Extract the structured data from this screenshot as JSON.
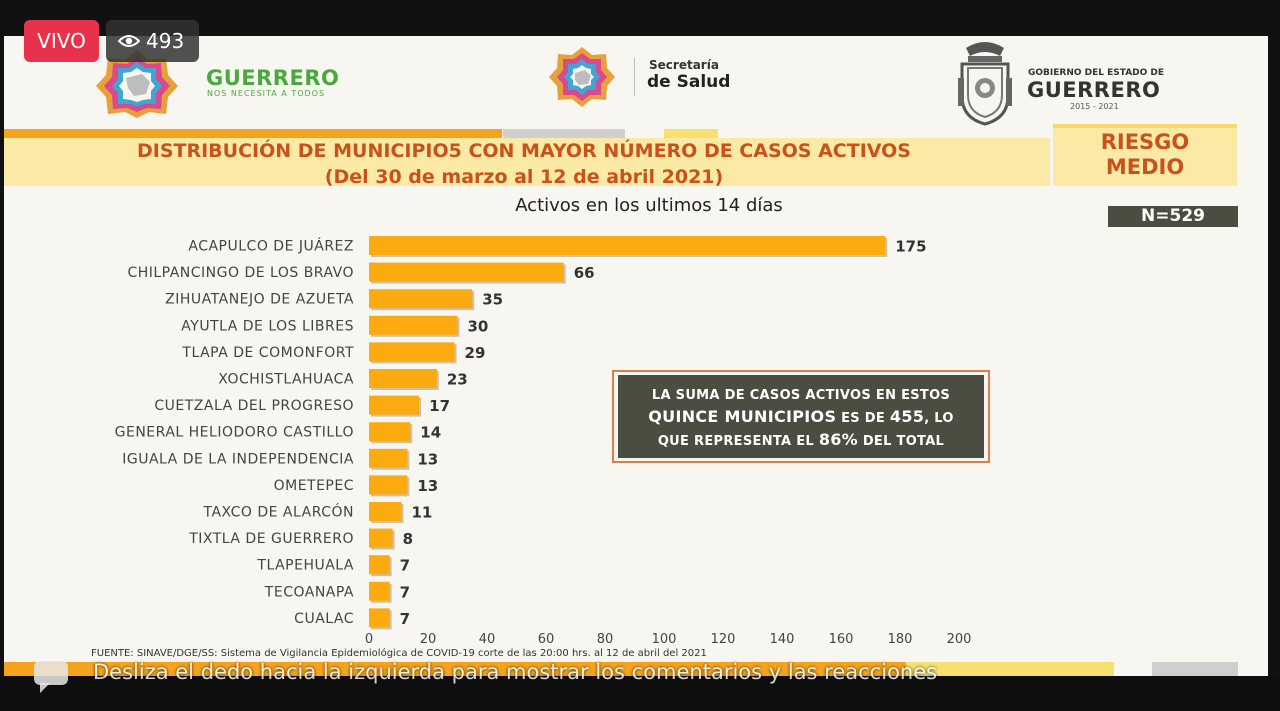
{
  "overlay": {
    "live_label": "VIVO",
    "viewers": "493",
    "swipe_hint": "Desliza el dedo hacia la izquierda para mostrar los comentarios y las reacciones"
  },
  "header": {
    "brand_name": "GUERRERO",
    "brand_slogan": "NOS NECESITA A TODOS",
    "secretaria_small": "Secretaría",
    "secretaria_big": "de Salud",
    "gobierno_small": "GOBIERNO DEL ESTADO DE",
    "gobierno_big": "GUERRERO",
    "gobierno_years": "2015 - 2021"
  },
  "title": {
    "line1": "DISTRIBUCIÓN DE MUNICIPIO5 CON MAYOR NÚMERO DE  CASOS ACTIVOS",
    "line2": "(Del 30 de marzo al 12 de abril 2021)"
  },
  "risk": {
    "line1": "RIESGO",
    "line2": "MEDIO"
  },
  "total_badge": "N=529",
  "callout": {
    "line1": "LA SUMA DE CASOS ACTIVOS EN ESTOS",
    "line2a": "QUINCE MUNICIPIOS",
    "line2b": " ES DE ",
    "line2c": "455",
    "line2d": ", LO",
    "line3a": "QUE REPRESENTA EL ",
    "line3b": "86%",
    "line3c": " DEL TOTAL"
  },
  "source": "FUENTE: SINAVE/DGE/SS: Sistema de Vigilancia Epidemiológica de COVID-19 corte de las 20:00 hrs. al 12 de abril del 2021",
  "colors": {
    "bar": "#fbab10",
    "title": "#c9521a",
    "band": "#fbe9a6",
    "callout_bg": "#4a4d3f",
    "callout_border": "#e07b4a",
    "brand_green": "#4aa83f",
    "live_red": "#e8314a"
  },
  "chart_data": {
    "type": "bar",
    "orientation": "horizontal",
    "title": "Activos en los ultimos 14 días",
    "categories": [
      "ACAPULCO DE JUÁREZ",
      "CHILPANCINGO DE LOS BRAVO",
      "ZIHUATANEJO DE AZUETA",
      "AYUTLA DE LOS LIBRES",
      "TLAPA DE COMONFORT",
      "XOCHISTLAHUACA",
      "CUETZALA DEL PROGRESO",
      "GENERAL HELIODORO CASTILLO",
      "IGUALA DE LA INDEPENDENCIA",
      "OMETEPEC",
      "TAXCO DE ALARCÓN",
      "TIXTLA DE GUERRERO",
      "TLAPEHUALA",
      "TECOANAPA",
      "CUALAC"
    ],
    "values": [
      175,
      66,
      35,
      30,
      29,
      23,
      17,
      14,
      13,
      13,
      11,
      8,
      7,
      7,
      7
    ],
    "xlim": [
      0,
      200
    ],
    "xticks": [
      0,
      20,
      40,
      60,
      80,
      100,
      120,
      140,
      160,
      180,
      200
    ],
    "grid": false,
    "legend": "none"
  }
}
